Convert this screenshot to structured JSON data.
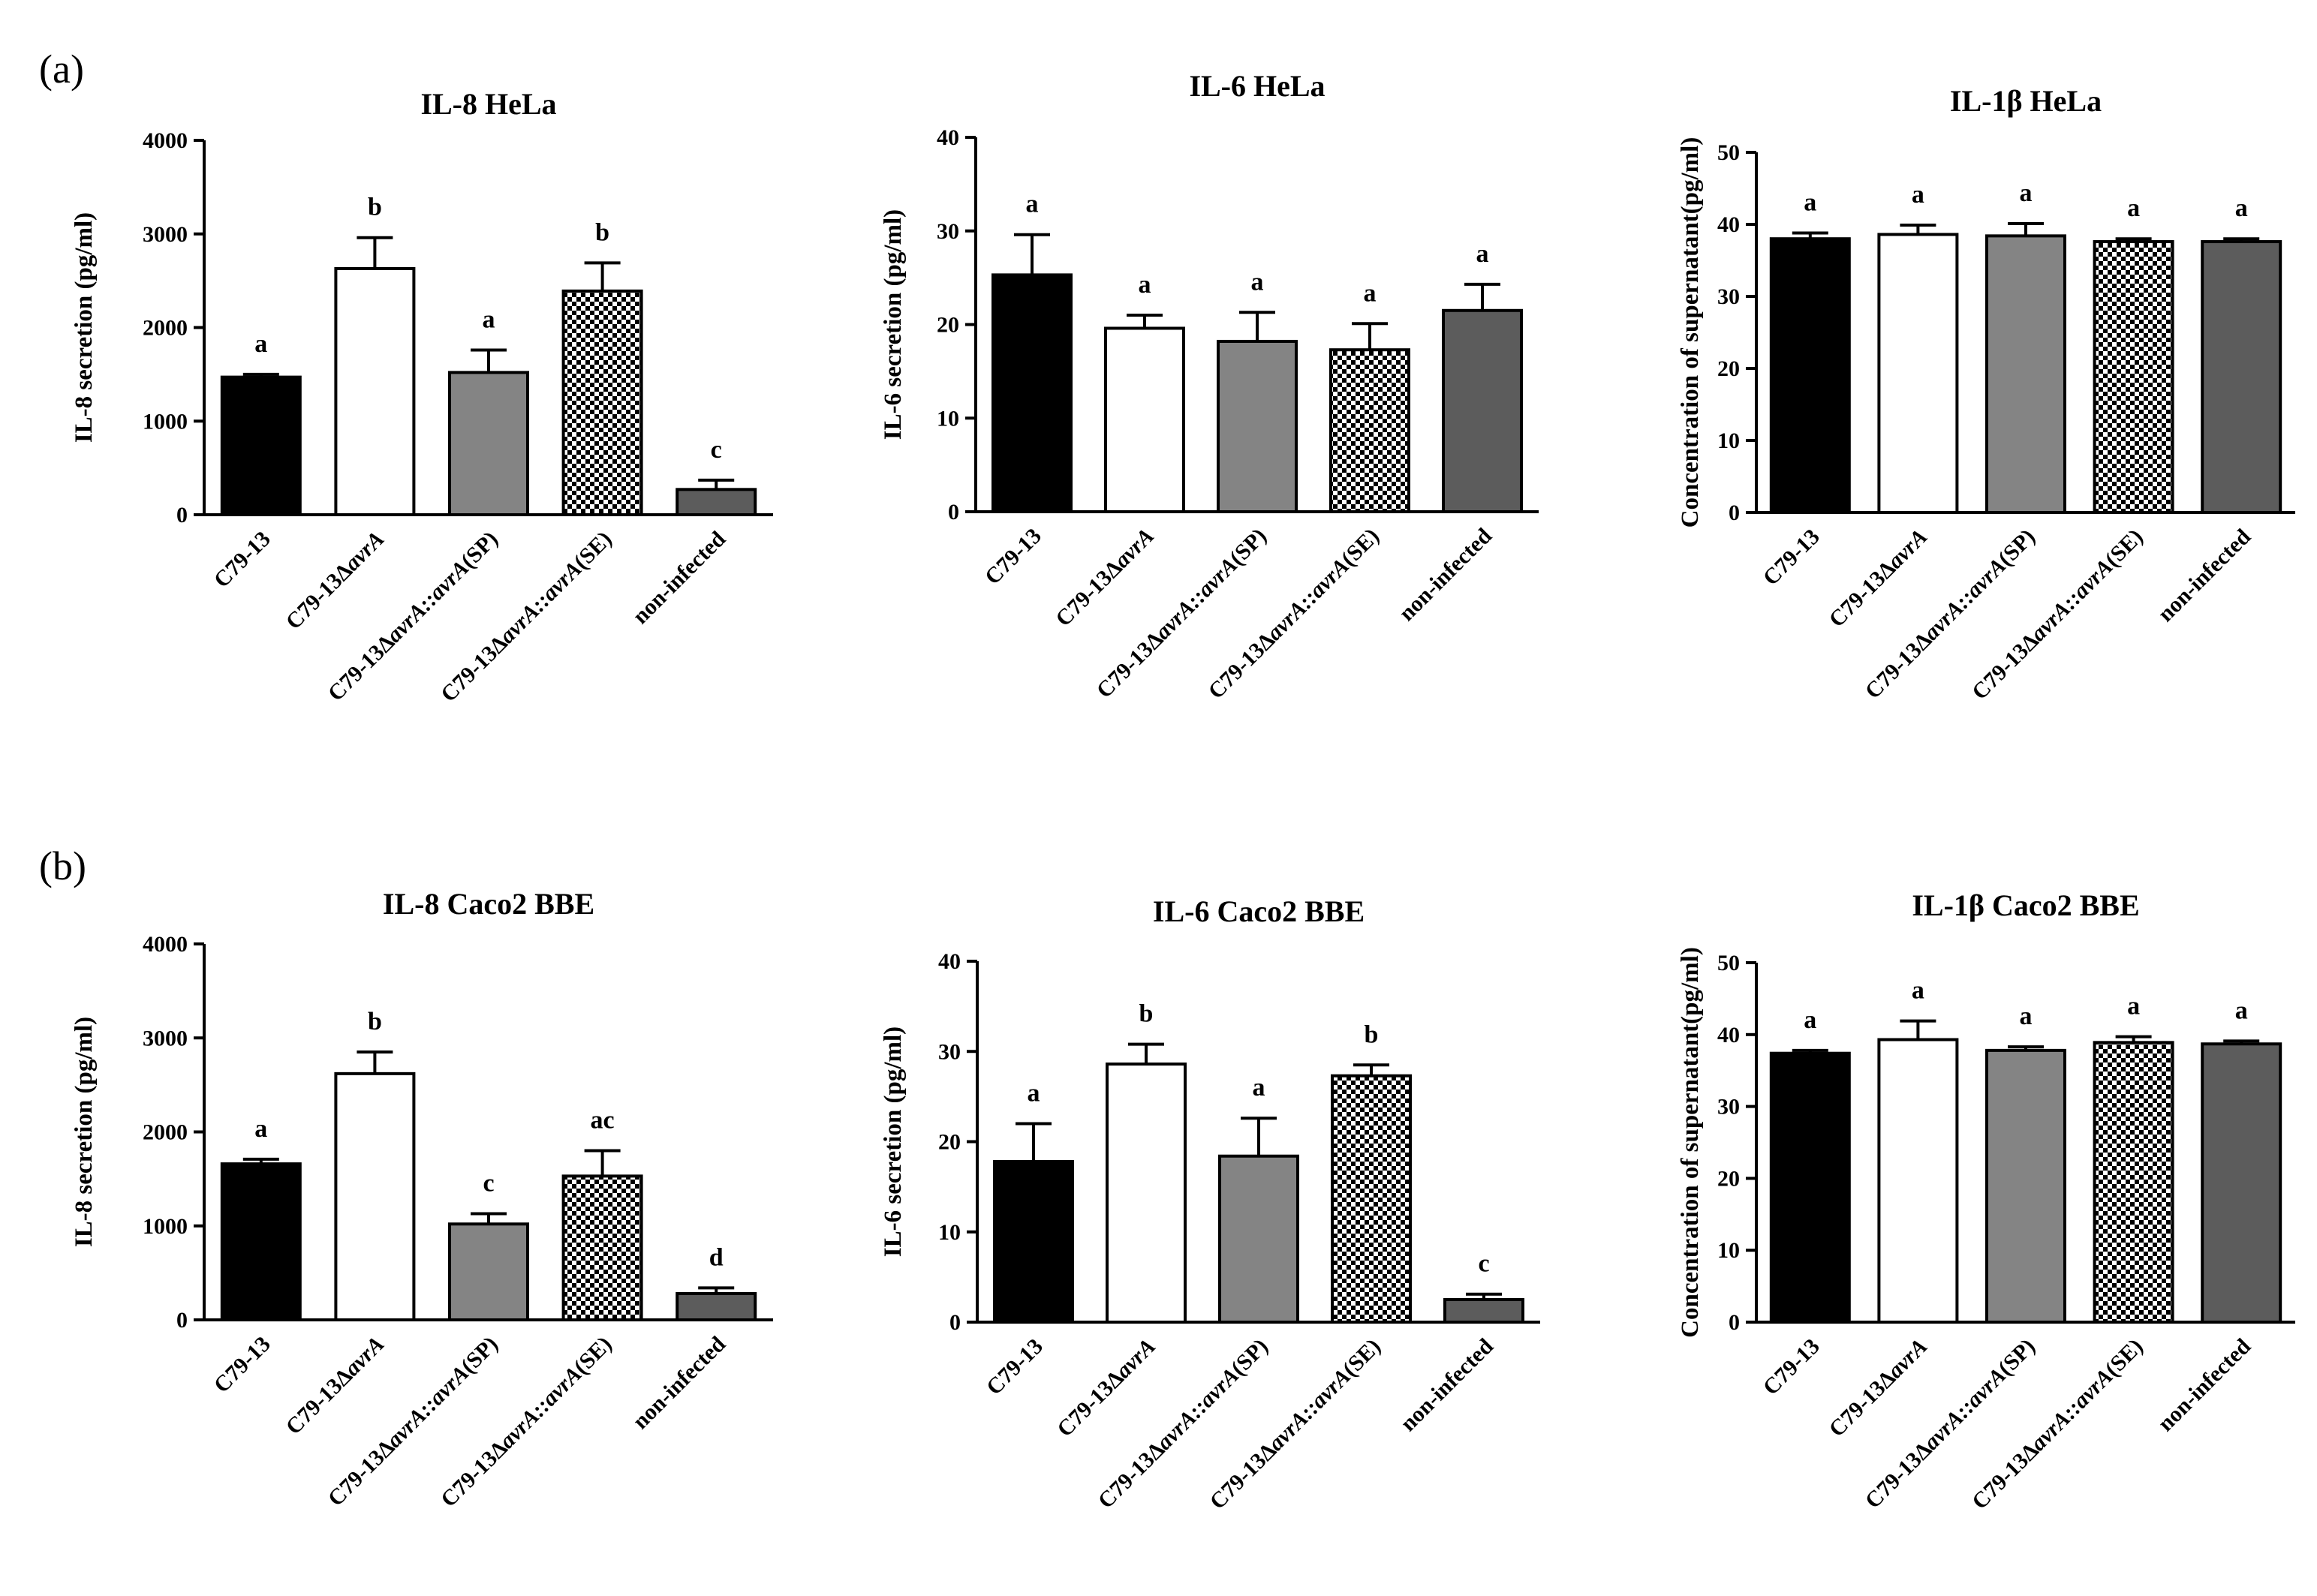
{
  "figure": {
    "panel_labels": [
      "(a)",
      "(b)"
    ]
  },
  "colors": {
    "C79-13": "#000000",
    "C79-13ΔavrA": "#ffffff",
    "C79-13ΔavrA::avrA(SP)": "#848484",
    "C79-13ΔavrA::avrA(SE)": "checker",
    "non-infected": "#5c5c5c"
  },
  "chart_data": [
    {
      "type": "bar",
      "panel": "(a)",
      "title": "IL-8 HeLa",
      "ylabel": "IL-8 secretion (pg/ml)",
      "ylim": [
        0,
        4000
      ],
      "yticks": [
        0,
        1000,
        2000,
        3000,
        4000
      ],
      "categories": [
        {
          "parts": [
            [
              "C79-13",
              false
            ]
          ]
        },
        {
          "parts": [
            [
              "C79-13Δ",
              false
            ],
            [
              "avrA",
              true
            ]
          ]
        },
        {
          "parts": [
            [
              "C79-13Δ",
              false
            ],
            [
              "avrA::avrA",
              true
            ],
            [
              "(SP)",
              false
            ]
          ]
        },
        {
          "parts": [
            [
              "C79-13Δ",
              false
            ],
            [
              "avrA::avrA",
              true
            ],
            [
              "(SE)",
              false
            ]
          ]
        },
        {
          "parts": [
            [
              "non-infected",
              false
            ]
          ]
        }
      ],
      "values": [
        1470,
        2630,
        1520,
        2390,
        270
      ],
      "errors": [
        30,
        330,
        240,
        300,
        100
      ],
      "letters": [
        "a",
        "b",
        "a",
        "b",
        "c"
      ]
    },
    {
      "type": "bar",
      "panel": "(a)",
      "title": "IL-6 HeLa",
      "ylabel": "IL-6 secretion (pg/ml)",
      "ylim": [
        0,
        40
      ],
      "yticks": [
        0,
        10,
        20,
        30,
        40
      ],
      "categories": [
        {
          "parts": [
            [
              "C79-13",
              false
            ]
          ]
        },
        {
          "parts": [
            [
              "C79-13Δ",
              false
            ],
            [
              "avrA",
              true
            ]
          ]
        },
        {
          "parts": [
            [
              "C79-13Δ",
              false
            ],
            [
              "avrA::avrA",
              true
            ],
            [
              "(SP)",
              false
            ]
          ]
        },
        {
          "parts": [
            [
              "C79-13Δ",
              false
            ],
            [
              "avrA::avrA",
              true
            ],
            [
              "(SE)",
              false
            ]
          ]
        },
        {
          "parts": [
            [
              "non-infected",
              false
            ]
          ]
        }
      ],
      "values": [
        25.3,
        19.6,
        18.2,
        17.3,
        21.5
      ],
      "errors": [
        4.3,
        1.4,
        3.1,
        2.8,
        2.8
      ],
      "letters": [
        "a",
        "a",
        "a",
        "a",
        "a"
      ]
    },
    {
      "type": "bar",
      "panel": "(a)",
      "title": "IL-1β HeLa",
      "ylabel": "Concentration of supernatant(pg/ml)",
      "ylim": [
        0,
        50
      ],
      "yticks": [
        0,
        10,
        20,
        30,
        40,
        50
      ],
      "categories": [
        {
          "parts": [
            [
              "C79-13",
              false
            ]
          ]
        },
        {
          "parts": [
            [
              "C79-13Δ",
              false
            ],
            [
              "avrA",
              true
            ]
          ]
        },
        {
          "parts": [
            [
              "C79-13Δ",
              false
            ],
            [
              "avrA::avrA",
              true
            ],
            [
              "(SP)",
              false
            ]
          ]
        },
        {
          "parts": [
            [
              "C79-13Δ",
              false
            ],
            [
              "avrA::avrA",
              true
            ],
            [
              "(SE)",
              false
            ]
          ]
        },
        {
          "parts": [
            [
              "non-infected",
              false
            ]
          ]
        }
      ],
      "values": [
        38.0,
        38.6,
        38.4,
        37.6,
        37.6
      ],
      "errors": [
        0.8,
        1.3,
        1.7,
        0.4,
        0.4
      ],
      "letters": [
        "a",
        "a",
        "a",
        "a",
        "a"
      ]
    },
    {
      "type": "bar",
      "panel": "(b)",
      "title": "IL-8 Caco2 BBE",
      "ylabel": "IL-8 secretion (pg/ml)",
      "ylim": [
        0,
        4000
      ],
      "yticks": [
        0,
        1000,
        2000,
        3000,
        4000
      ],
      "categories": [
        {
          "parts": [
            [
              "C79-13",
              false
            ]
          ]
        },
        {
          "parts": [
            [
              "C79-13Δ",
              false
            ],
            [
              "avrA",
              true
            ]
          ]
        },
        {
          "parts": [
            [
              "C79-13Δ",
              false
            ],
            [
              "avrA::avrA",
              true
            ],
            [
              "(SP)",
              false
            ]
          ]
        },
        {
          "parts": [
            [
              "C79-13Δ",
              false
            ],
            [
              "avrA::avrA",
              true
            ],
            [
              "(SE)",
              false
            ]
          ]
        },
        {
          "parts": [
            [
              "non-infected",
              false
            ]
          ]
        }
      ],
      "values": [
        1660,
        2620,
        1020,
        1530,
        280
      ],
      "errors": [
        50,
        230,
        110,
        270,
        60
      ],
      "letters": [
        "a",
        "b",
        "c",
        "ac",
        "d"
      ]
    },
    {
      "type": "bar",
      "panel": "(b)",
      "title": "IL-6 Caco2 BBE",
      "ylabel": "IL-6 secretion (pg/ml)",
      "ylim": [
        0,
        40
      ],
      "yticks": [
        0,
        10,
        20,
        30,
        40
      ],
      "categories": [
        {
          "parts": [
            [
              "C79-13",
              false
            ]
          ]
        },
        {
          "parts": [
            [
              "C79-13Δ",
              false
            ],
            [
              "avrA",
              true
            ]
          ]
        },
        {
          "parts": [
            [
              "C79-13Δ",
              false
            ],
            [
              "avrA::avrA",
              true
            ],
            [
              "(SP)",
              false
            ]
          ]
        },
        {
          "parts": [
            [
              "C79-13Δ",
              false
            ],
            [
              "avrA::avrA",
              true
            ],
            [
              "(SE)",
              false
            ]
          ]
        },
        {
          "parts": [
            [
              "non-infected",
              false
            ]
          ]
        }
      ],
      "values": [
        17.8,
        28.6,
        18.4,
        27.3,
        2.5
      ],
      "errors": [
        4.2,
        2.2,
        4.2,
        1.2,
        0.6
      ],
      "letters": [
        "a",
        "b",
        "a",
        "b",
        "c"
      ]
    },
    {
      "type": "bar",
      "panel": "(b)",
      "title": "IL-1β Caco2 BBE",
      "ylabel": "Concentration of supernatant(pg/ml)",
      "ylim": [
        0,
        50
      ],
      "yticks": [
        0,
        10,
        20,
        30,
        40,
        50
      ],
      "categories": [
        {
          "parts": [
            [
              "C79-13",
              false
            ]
          ]
        },
        {
          "parts": [
            [
              "C79-13Δ",
              false
            ],
            [
              "avrA",
              true
            ]
          ]
        },
        {
          "parts": [
            [
              "C79-13Δ",
              false
            ],
            [
              "avrA::avrA",
              true
            ],
            [
              "(SP)",
              false
            ]
          ]
        },
        {
          "parts": [
            [
              "C79-13Δ",
              false
            ],
            [
              "avrA::avrA",
              true
            ],
            [
              "(SE)",
              false
            ]
          ]
        },
        {
          "parts": [
            [
              "non-infected",
              false
            ]
          ]
        }
      ],
      "values": [
        37.4,
        39.3,
        37.8,
        38.9,
        38.7
      ],
      "errors": [
        0.4,
        2.6,
        0.5,
        0.8,
        0.4
      ],
      "letters": [
        "a",
        "a",
        "a",
        "a",
        "a"
      ]
    }
  ]
}
